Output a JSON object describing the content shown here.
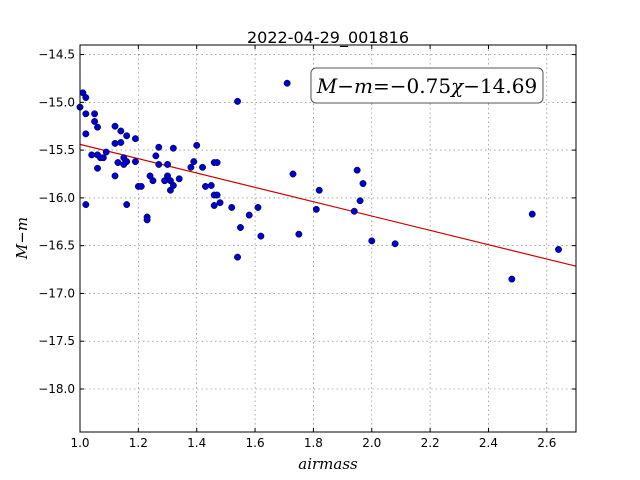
{
  "chart_data": {
    "type": "scatter",
    "title": "2022-04-29_001816",
    "xlabel": "airmass",
    "ylabel": "M−m",
    "xlim": [
      1.0,
      2.7
    ],
    "ylim": [
      -18.45,
      -14.4
    ],
    "y_inverted": true,
    "grid": true,
    "x_ticks": [
      1.0,
      1.2,
      1.4,
      1.6,
      1.8,
      2.0,
      2.2,
      2.4,
      2.6
    ],
    "x_tick_labels": [
      "1.0",
      "1.2",
      "1.4",
      "1.6",
      "1.8",
      "2.0",
      "2.2",
      "2.4",
      "2.6"
    ],
    "y_ticks": [
      -14.5,
      -15.0,
      -15.5,
      -16.0,
      -16.5,
      -17.0,
      -17.5,
      -18.0
    ],
    "y_tick_labels": [
      "−14.5",
      "−15.0",
      "−15.5",
      "−16.0",
      "−16.5",
      "−17.0",
      "−17.5",
      "−18.0"
    ],
    "fit_line": {
      "slope": -0.75,
      "intercept": -14.69,
      "color": "#cc0000"
    },
    "annotation": {
      "lhs": "M−m",
      "eq": "=",
      "coef": "−0.75",
      "var": "χ",
      "const": "−14.69",
      "placement": "top-right"
    },
    "marker_color": "#0000cc",
    "points": [
      [
        1.0,
        -15.05
      ],
      [
        1.01,
        -14.9
      ],
      [
        1.02,
        -14.95
      ],
      [
        1.02,
        -15.12
      ],
      [
        1.02,
        -15.33
      ],
      [
        1.02,
        -16.07
      ],
      [
        1.04,
        -15.55
      ],
      [
        1.05,
        -15.2
      ],
      [
        1.05,
        -15.12
      ],
      [
        1.06,
        -15.26
      ],
      [
        1.06,
        -15.55
      ],
      [
        1.06,
        -15.69
      ],
      [
        1.07,
        -15.58
      ],
      [
        1.08,
        -15.58
      ],
      [
        1.09,
        -15.52
      ],
      [
        1.12,
        -15.25
      ],
      [
        1.12,
        -15.43
      ],
      [
        1.12,
        -15.77
      ],
      [
        1.13,
        -15.63
      ],
      [
        1.14,
        -15.3
      ],
      [
        1.14,
        -15.42
      ],
      [
        1.15,
        -15.65
      ],
      [
        1.15,
        -15.58
      ],
      [
        1.16,
        -15.62
      ],
      [
        1.16,
        -15.35
      ],
      [
        1.16,
        -16.07
      ],
      [
        1.19,
        -15.62
      ],
      [
        1.19,
        -15.38
      ],
      [
        1.2,
        -15.88
      ],
      [
        1.21,
        -15.88
      ],
      [
        1.23,
        -16.2
      ],
      [
        1.23,
        -16.23
      ],
      [
        1.24,
        -15.77
      ],
      [
        1.25,
        -15.82
      ],
      [
        1.26,
        -15.56
      ],
      [
        1.27,
        -15.47
      ],
      [
        1.27,
        -15.65
      ],
      [
        1.29,
        -15.82
      ],
      [
        1.3,
        -15.65
      ],
      [
        1.3,
        -15.77
      ],
      [
        1.31,
        -15.82
      ],
      [
        1.31,
        -15.92
      ],
      [
        1.32,
        -15.48
      ],
      [
        1.32,
        -15.87
      ],
      [
        1.34,
        -15.8
      ],
      [
        1.38,
        -15.68
      ],
      [
        1.39,
        -15.62
      ],
      [
        1.4,
        -15.45
      ],
      [
        1.42,
        -15.68
      ],
      [
        1.43,
        -15.88
      ],
      [
        1.45,
        -15.87
      ],
      [
        1.46,
        -15.63
      ],
      [
        1.46,
        -16.08
      ],
      [
        1.46,
        -15.97
      ],
      [
        1.47,
        -15.63
      ],
      [
        1.47,
        -15.97
      ],
      [
        1.48,
        -16.05
      ],
      [
        1.52,
        -16.1
      ],
      [
        1.54,
        -14.99
      ],
      [
        1.54,
        -16.62
      ],
      [
        1.55,
        -16.31
      ],
      [
        1.58,
        -16.18
      ],
      [
        1.61,
        -16.1
      ],
      [
        1.62,
        -16.4
      ],
      [
        1.71,
        -14.8
      ],
      [
        1.73,
        -15.75
      ],
      [
        1.75,
        -16.38
      ],
      [
        1.81,
        -16.12
      ],
      [
        1.82,
        -15.92
      ],
      [
        1.94,
        -16.14
      ],
      [
        1.95,
        -15.71
      ],
      [
        1.96,
        -16.03
      ],
      [
        1.97,
        -15.85
      ],
      [
        2.0,
        -16.45
      ],
      [
        2.08,
        -16.48
      ],
      [
        2.48,
        -16.85
      ],
      [
        2.55,
        -16.17
      ],
      [
        2.64,
        -16.54
      ]
    ]
  }
}
